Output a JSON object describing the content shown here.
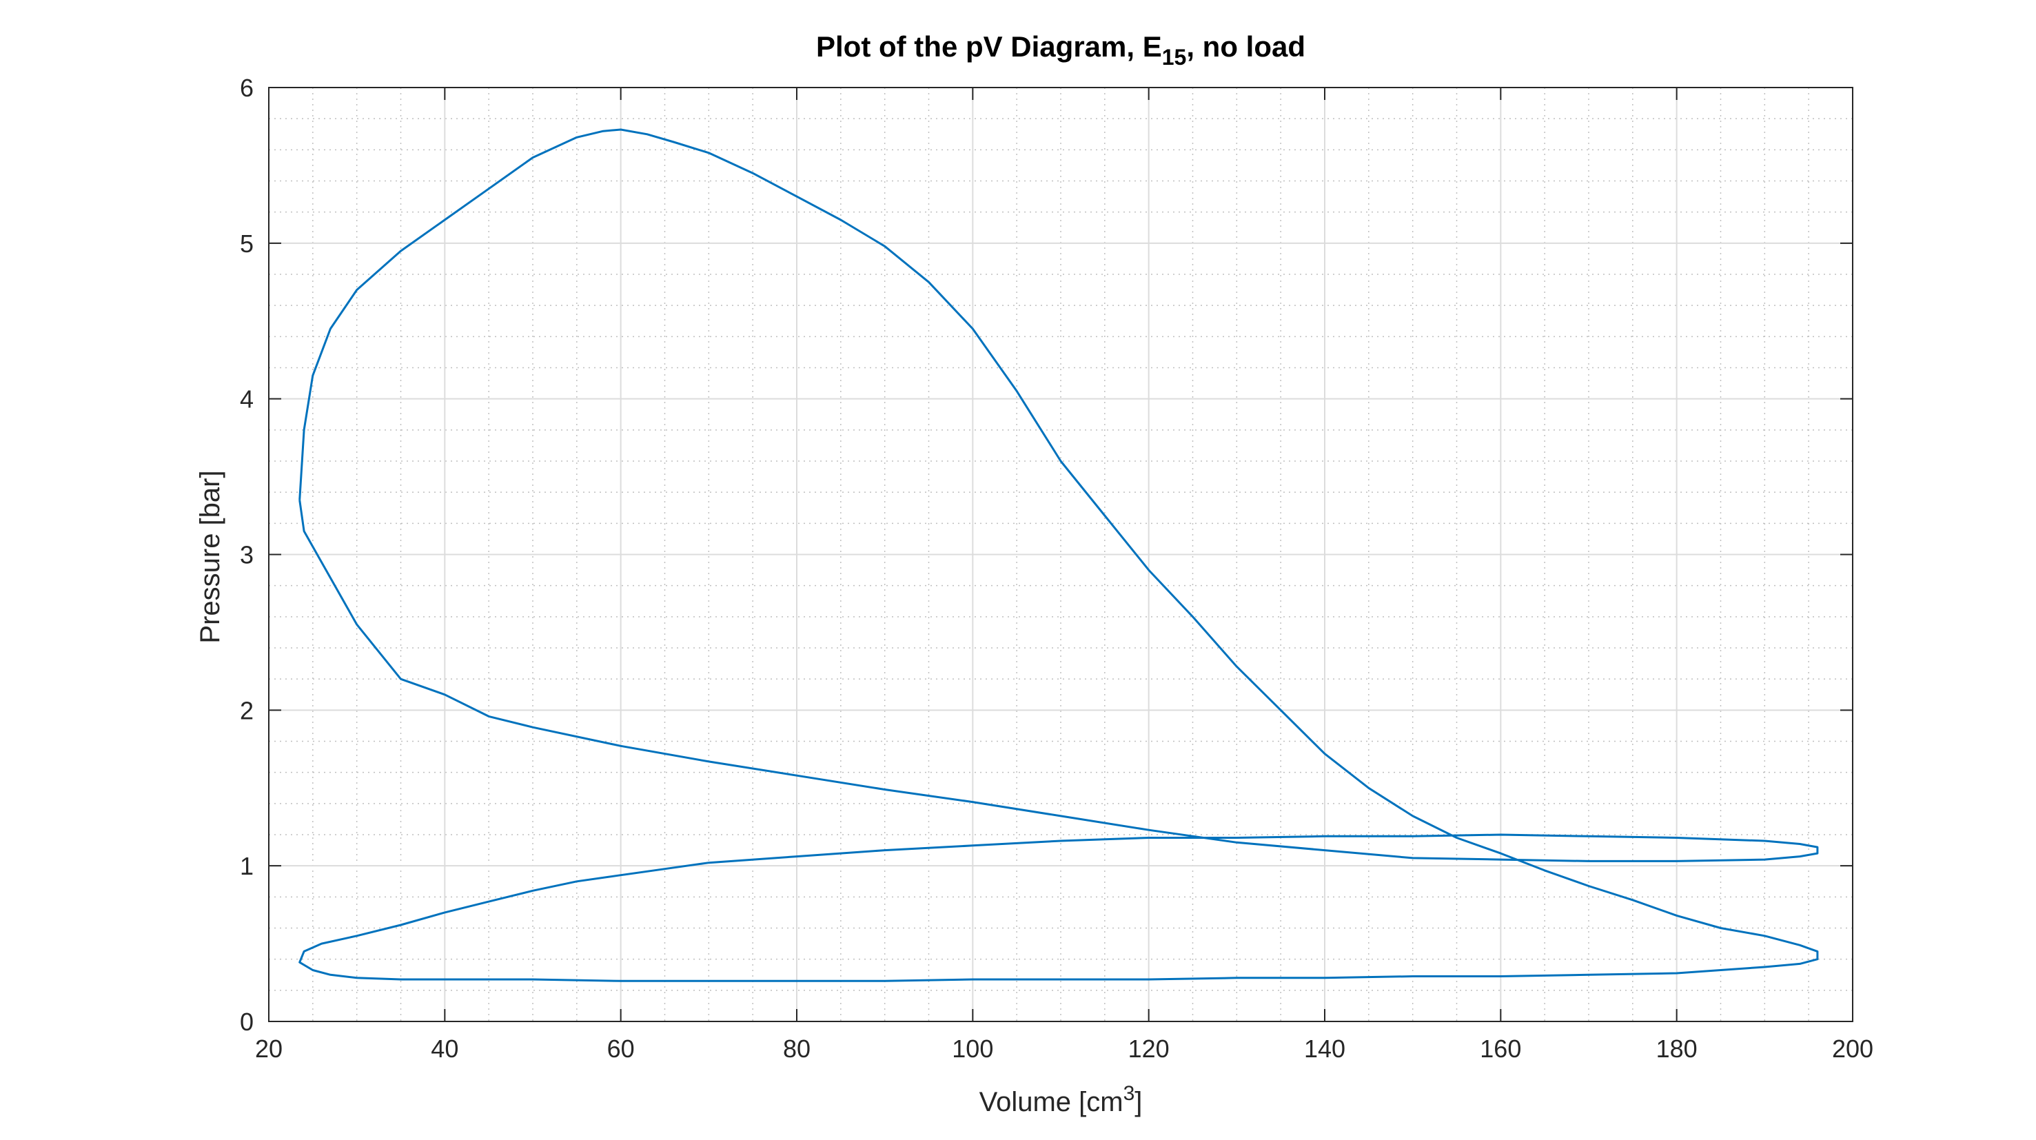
{
  "chart_data": {
    "type": "line",
    "title": "Plot of the pV Diagram, E",
    "title_subscript": "15",
    "title_suffix": ", no load",
    "xlabel": "Volume [cm",
    "xlabel_superscript": "3",
    "xlabel_suffix": "]",
    "ylabel": "Pressure [bar]",
    "xlim": [
      20,
      200
    ],
    "ylim": [
      0,
      6
    ],
    "xticks": [
      20,
      40,
      60,
      80,
      100,
      120,
      140,
      160,
      180,
      200
    ],
    "yticks": [
      0,
      1,
      2,
      3,
      4,
      5,
      6
    ],
    "grid": true,
    "minor_grid": true,
    "line_color": "#0072BD",
    "series": [
      {
        "x": [
          23.5,
          24,
          25,
          27,
          30,
          35,
          40,
          45,
          50,
          55,
          58,
          60,
          63,
          66,
          70,
          75,
          80,
          85,
          90,
          95,
          100,
          105,
          110,
          115,
          120,
          125,
          130,
          135,
          140,
          145,
          150,
          155,
          160,
          165,
          170,
          175,
          180,
          185,
          190,
          194,
          196,
          196,
          194,
          190,
          185,
          180,
          170,
          160,
          150,
          140,
          130,
          120,
          110,
          100,
          90,
          80,
          70,
          60,
          50,
          40,
          35,
          30,
          27,
          25,
          23.5,
          24,
          26,
          30,
          35,
          40,
          45,
          50,
          55,
          60,
          65,
          70,
          80,
          90,
          100,
          110,
          120,
          130,
          140,
          150,
          160,
          170,
          180,
          190,
          194,
          196,
          196,
          194,
          190,
          180,
          170,
          160,
          150,
          140,
          130,
          120,
          110,
          100,
          90,
          80,
          70,
          60,
          50,
          45,
          40,
          35,
          30,
          26,
          24,
          23.5
        ],
        "y": [
          3.35,
          3.8,
          4.15,
          4.45,
          4.7,
          4.95,
          5.15,
          5.35,
          5.55,
          5.68,
          5.72,
          5.73,
          5.7,
          5.65,
          5.58,
          5.45,
          5.3,
          5.15,
          4.98,
          4.75,
          4.45,
          4.05,
          3.6,
          3.25,
          2.9,
          2.6,
          2.28,
          2.0,
          1.72,
          1.5,
          1.32,
          1.18,
          1.08,
          0.97,
          0.87,
          0.78,
          0.68,
          0.6,
          0.55,
          0.49,
          0.45,
          0.4,
          0.37,
          0.35,
          0.33,
          0.31,
          0.3,
          0.29,
          0.29,
          0.28,
          0.28,
          0.27,
          0.27,
          0.27,
          0.26,
          0.26,
          0.26,
          0.26,
          0.27,
          0.27,
          0.27,
          0.28,
          0.3,
          0.33,
          0.38,
          0.45,
          0.5,
          0.55,
          0.62,
          0.7,
          0.77,
          0.84,
          0.9,
          0.94,
          0.98,
          1.02,
          1.06,
          1.1,
          1.13,
          1.16,
          1.18,
          1.18,
          1.19,
          1.19,
          1.2,
          1.19,
          1.18,
          1.16,
          1.14,
          1.12,
          1.08,
          1.06,
          1.04,
          1.03,
          1.03,
          1.04,
          1.05,
          1.1,
          1.15,
          1.23,
          1.32,
          1.41,
          1.49,
          1.58,
          1.67,
          1.77,
          1.89,
          1.96,
          2.1,
          2.2,
          2.55,
          2.95,
          3.15,
          3.35
        ]
      }
    ]
  }
}
